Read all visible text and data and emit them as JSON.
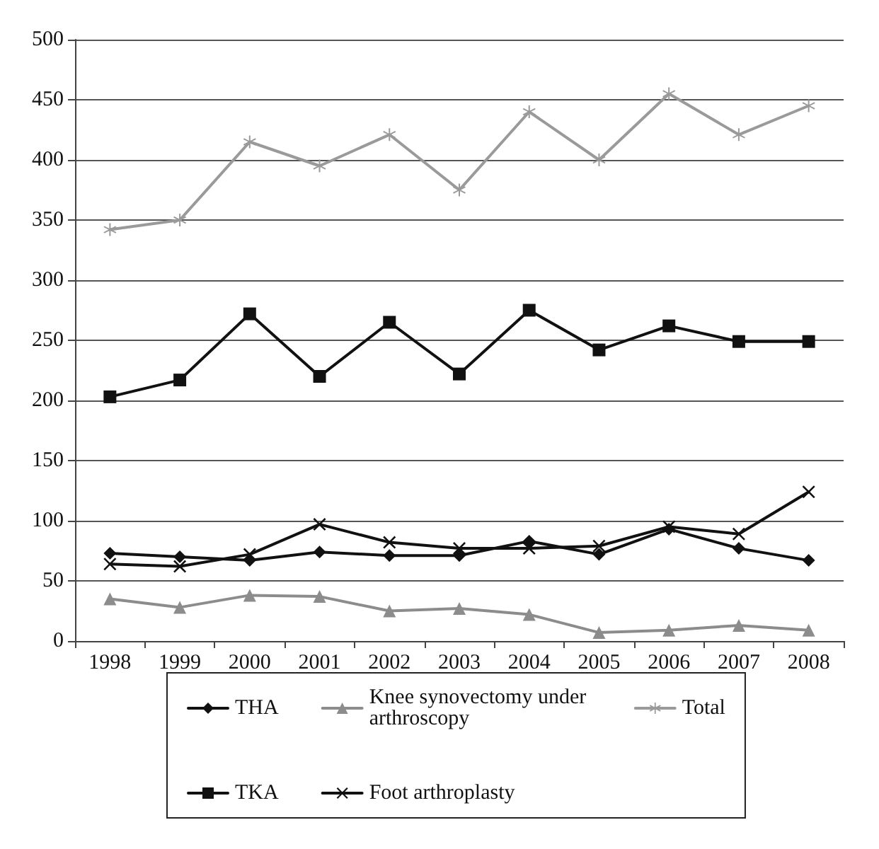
{
  "chart_data": {
    "type": "line",
    "categories": [
      "1998",
      "1999",
      "2000",
      "2001",
      "2002",
      "2003",
      "2004",
      "2005",
      "2006",
      "2007",
      "2008"
    ],
    "series": [
      {
        "name": "THA",
        "color": "#111111",
        "marker": "diamond",
        "values": [
          73,
          70,
          67,
          74,
          71,
          71,
          83,
          72,
          93,
          77,
          67
        ]
      },
      {
        "name": "Knee synovectomy under arthroscopy",
        "color": "#8c8c8c",
        "marker": "triangle",
        "values": [
          35,
          28,
          38,
          37,
          25,
          27,
          22,
          7,
          9,
          13,
          9
        ]
      },
      {
        "name": "Total",
        "color": "#9a9a9a",
        "marker": "star",
        "values": [
          342,
          350,
          415,
          395,
          421,
          375,
          440,
          400,
          455,
          421,
          445
        ]
      },
      {
        "name": "TKA",
        "color": "#111111",
        "marker": "square",
        "values": [
          203,
          217,
          272,
          220,
          265,
          222,
          275,
          242,
          262,
          249,
          249
        ]
      },
      {
        "name": "Foot arthroplasty",
        "color": "#111111",
        "marker": "cross",
        "values": [
          64,
          62,
          72,
          97,
          82,
          77,
          77,
          79,
          95,
          89,
          124
        ]
      }
    ],
    "ylim": [
      0,
      500
    ],
    "yticks": [
      0,
      50,
      100,
      150,
      200,
      250,
      300,
      350,
      400,
      450,
      500
    ],
    "grid": "y",
    "legend": "bottom",
    "line_style": "solid"
  }
}
